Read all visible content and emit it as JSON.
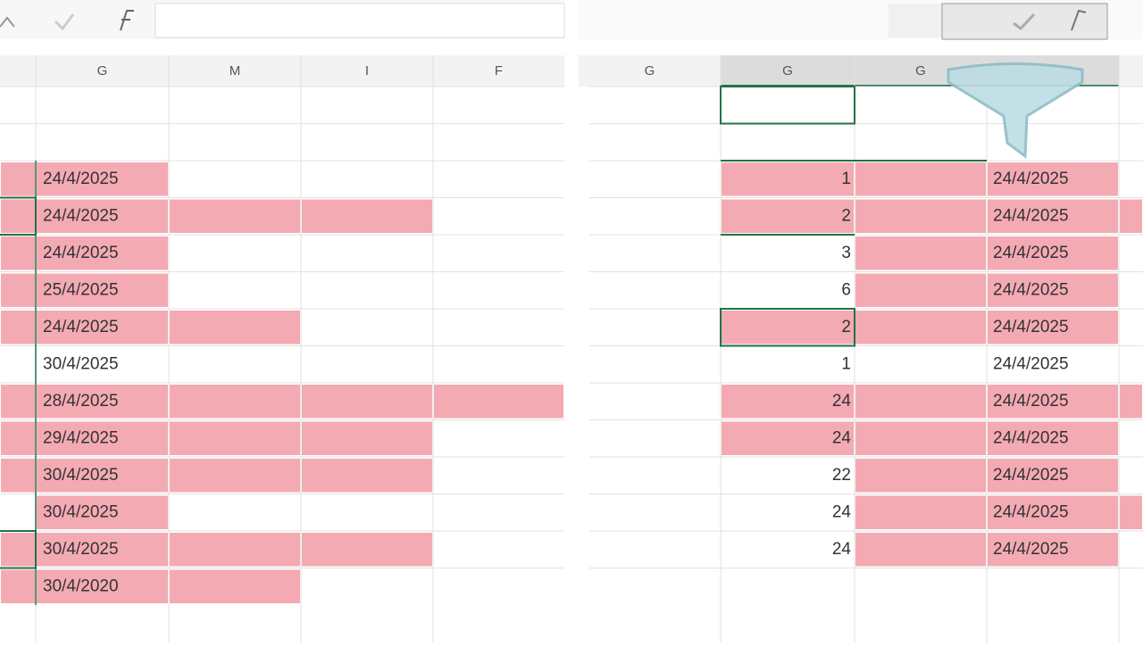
{
  "left": {
    "headers": [
      "G",
      "M",
      "I",
      "F"
    ],
    "cells": [
      "24/4/2025",
      "24/4/2025",
      "24/4/2025",
      "25/4/2025",
      "24/4/2025",
      "30/4/2025",
      "28/4/2025",
      "29/4/2025",
      "30/4/2025",
      "30/4/2025",
      "30/4/2025",
      "30/4/2020"
    ]
  },
  "right": {
    "headers": [
      "G",
      "G",
      "G"
    ],
    "numbers": [
      "1",
      "2",
      "3",
      "6",
      "2",
      "1",
      "24",
      "24",
      "22",
      "24",
      "24"
    ],
    "dates": [
      "24/4/2025",
      "24/4/2025",
      "24/4/2025",
      "24/4/2025",
      "24/4/2025",
      "24/4/2025",
      "24/4/2025",
      "24/4/2025",
      "24/4/2025",
      "24/4/2025",
      "24/4/2025"
    ]
  }
}
